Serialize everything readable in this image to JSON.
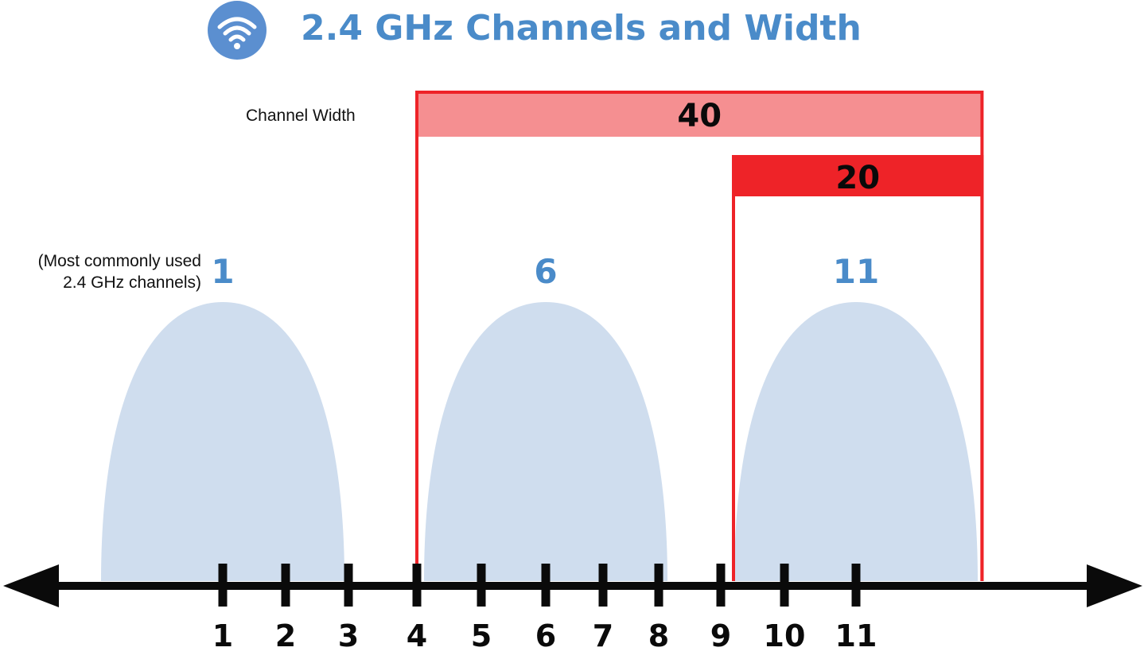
{
  "title": "2.4 GHz Channels and Width",
  "channel_width_label": "Channel Width",
  "note_line1": "(Most commonly used",
  "note_line2": "2.4 GHz channels)",
  "icon": "wifi-icon",
  "colors": {
    "title": "#4a8bc9",
    "icon_circle": "#5b8fd0",
    "lobe_fill": "#cfddee",
    "red": "#ee2328",
    "pink": "#f58f91",
    "axis": "#0a0a0a"
  },
  "widths": [
    {
      "label": "40",
      "from_channel": 4,
      "to_channel": 12.8
    },
    {
      "label": "20",
      "from_channel": 9.2,
      "to_channel": 12.8
    }
  ],
  "highlighted_channels": [
    "1",
    "6",
    "11"
  ],
  "axis_ticks": [
    "1",
    "2",
    "3",
    "4",
    "5",
    "6",
    "7",
    "8",
    "9",
    "10",
    "11"
  ]
}
